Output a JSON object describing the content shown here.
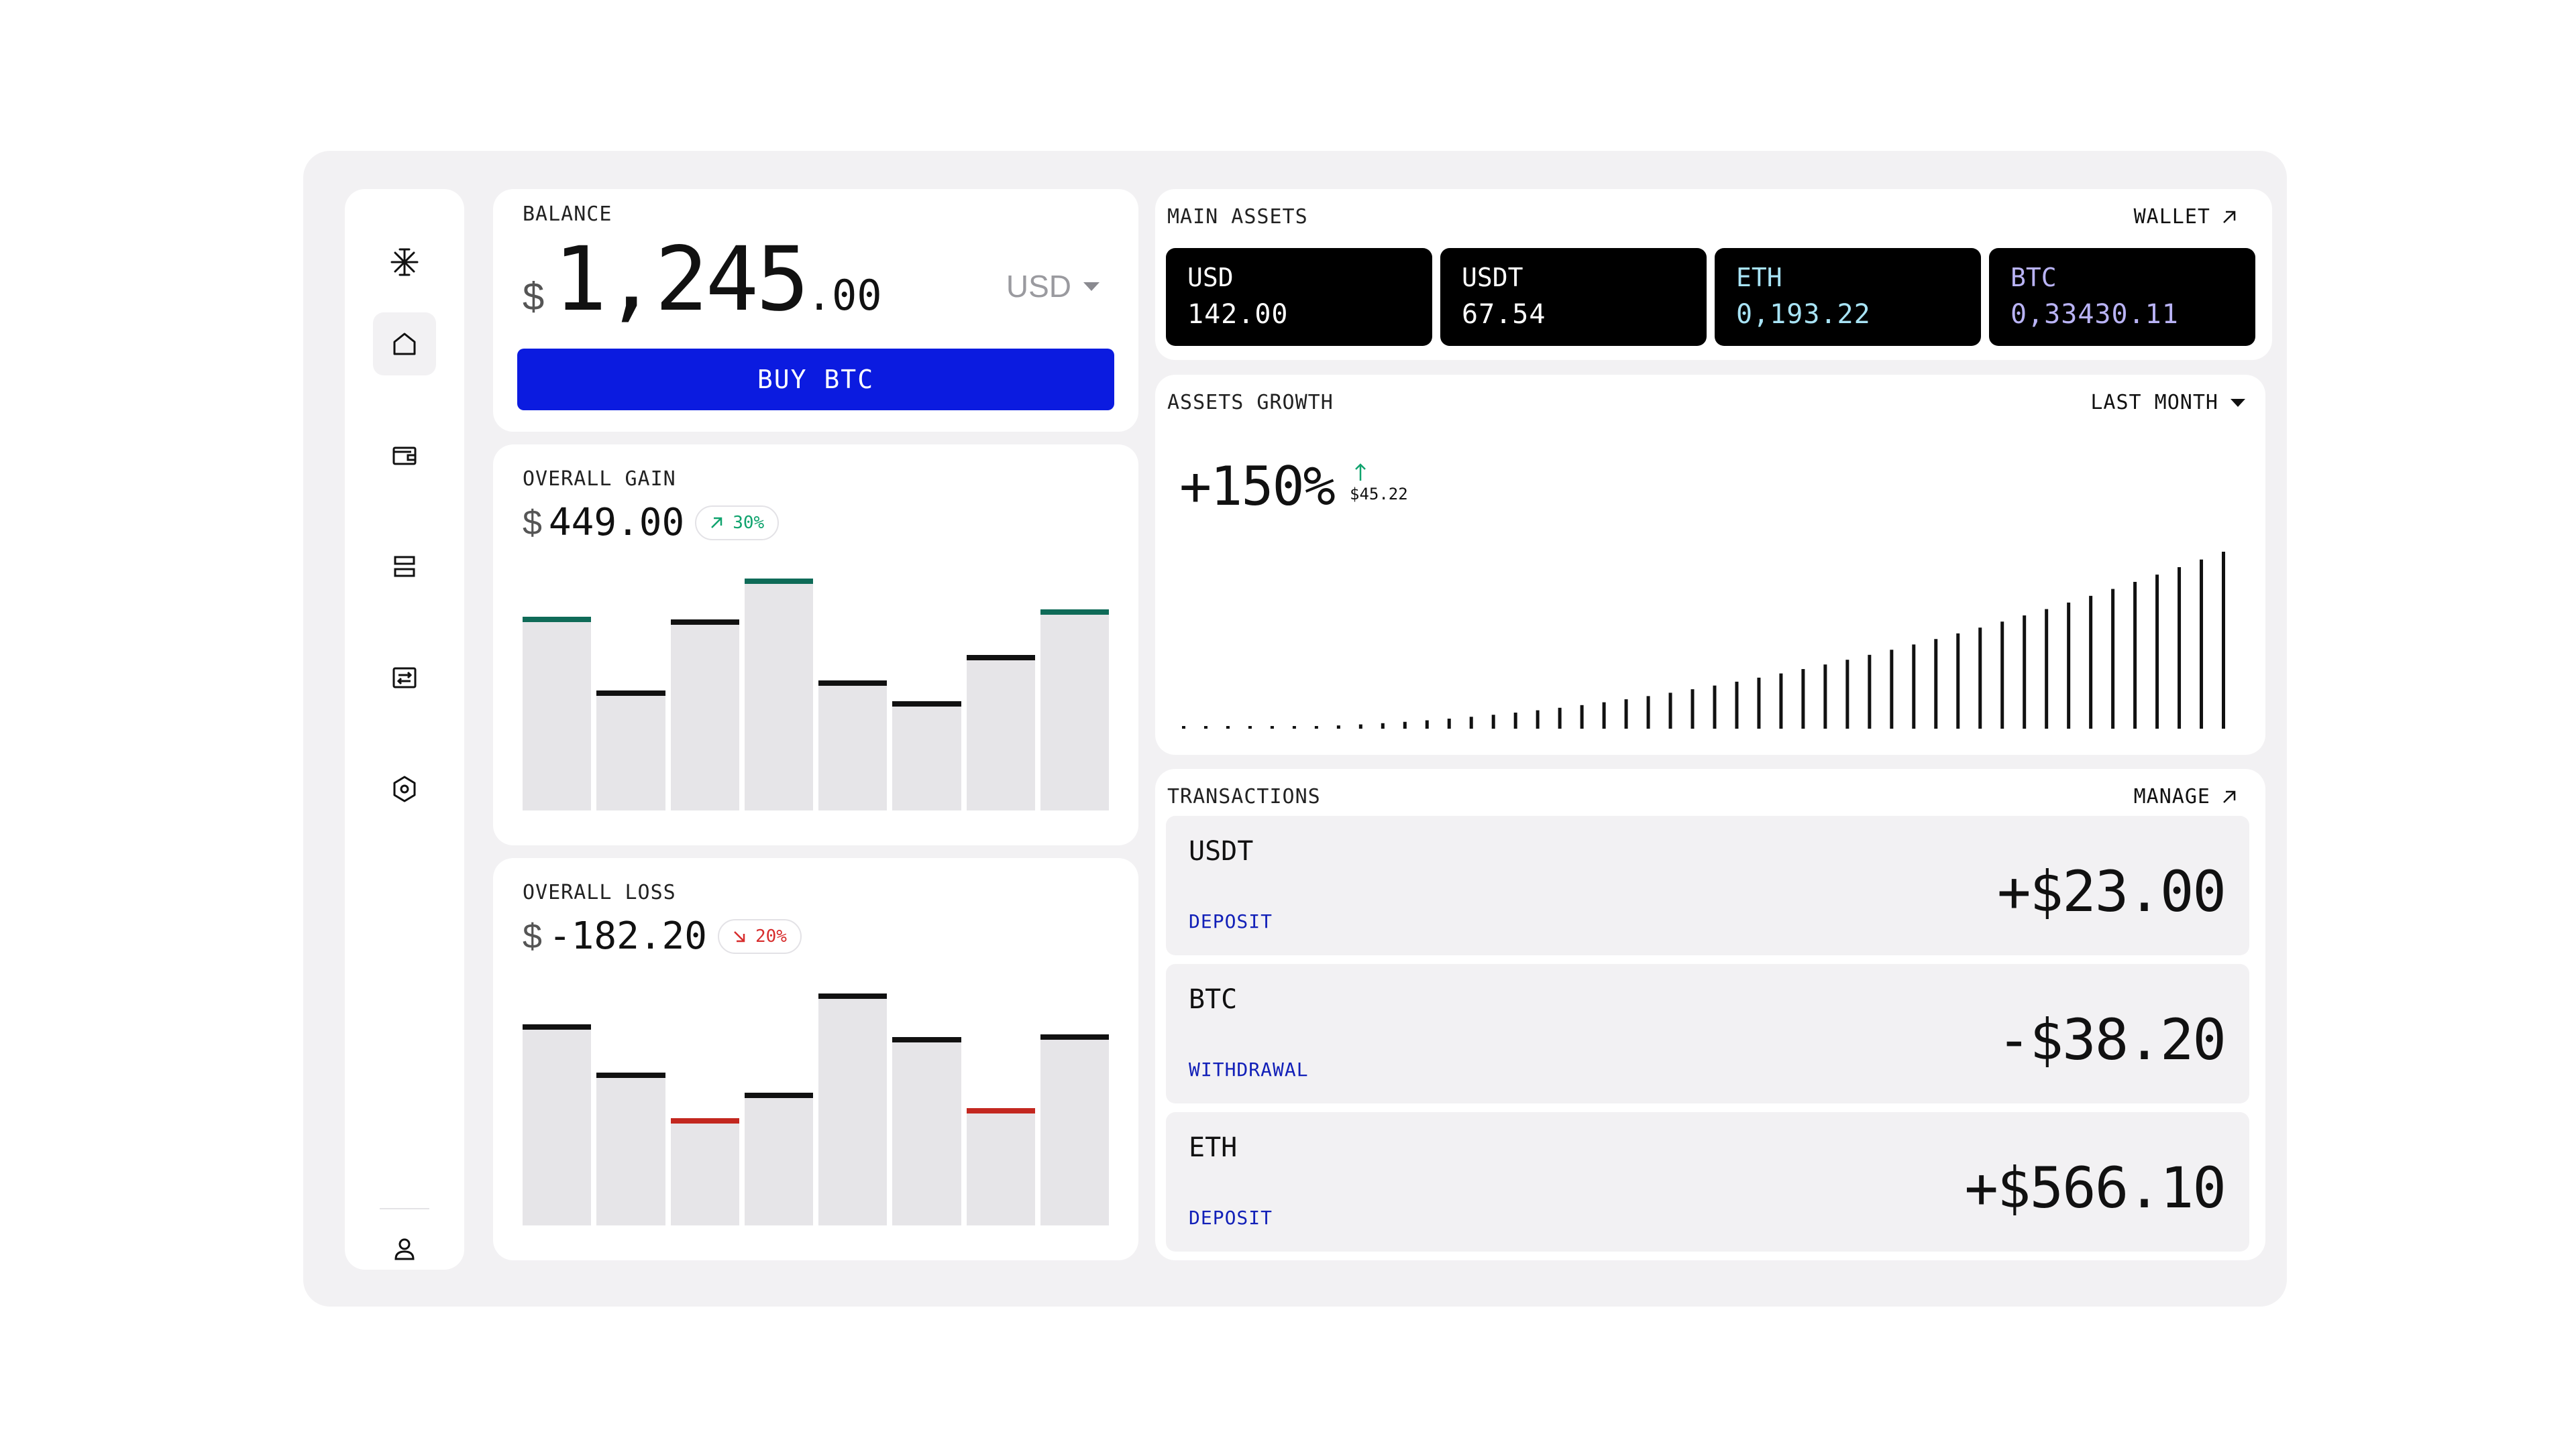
{
  "sidebar": {
    "logo_icon": "asterisk-logo-icon",
    "items": [
      {
        "name": "home",
        "icon": "home-icon",
        "active": true
      },
      {
        "name": "wallet",
        "icon": "wallet-icon",
        "active": false
      },
      {
        "name": "list",
        "icon": "list-icon",
        "active": false
      },
      {
        "name": "exchange",
        "icon": "exchange-icon",
        "active": false
      },
      {
        "name": "settings",
        "icon": "hexagon-settings-icon",
        "active": false
      }
    ],
    "profile_icon": "user-icon"
  },
  "balance": {
    "label": "BALANCE",
    "currency_sign": "$",
    "amount_int": "1,245",
    "amount_dec": ".00",
    "currency": "USD",
    "buy_label": "BUY BTC",
    "accent": "#0b1be0"
  },
  "gain": {
    "label": "OVERALL GAIN",
    "sign": "$",
    "value": "449.00",
    "badge": "30%",
    "badge_color": "#10a36e",
    "chart_data": {
      "type": "bar",
      "values": [
        0.76,
        0.47,
        0.75,
        0.91,
        0.51,
        0.43,
        0.61,
        0.79
      ],
      "cap_colors": [
        "#0f6b58",
        "#111111",
        "#111111",
        "#0f6b58",
        "#111111",
        "#111111",
        "#111111",
        "#0f6b58"
      ]
    }
  },
  "loss": {
    "label": "OVERALL LOSS",
    "sign": "$",
    "value": "-182.20",
    "badge": "20%",
    "badge_color": "#d72d2d",
    "chart_data": {
      "type": "bar",
      "values": [
        0.79,
        0.6,
        0.42,
        0.52,
        0.91,
        0.74,
        0.46,
        0.75
      ],
      "cap_colors": [
        "#111111",
        "#111111",
        "#c3271f",
        "#111111",
        "#111111",
        "#111111",
        "#c3271f",
        "#111111"
      ]
    }
  },
  "main_assets": {
    "label": "MAIN ASSETS",
    "wallet_label": "WALLET",
    "tiles": [
      {
        "name": "USD",
        "value": "142.00",
        "color": "#ffffff"
      },
      {
        "name": "USDT",
        "value": "67.54",
        "color": "#ffffff"
      },
      {
        "name": "ETH",
        "value": "0,193.22",
        "color": "#a8e3f5"
      },
      {
        "name": "BTC",
        "value": "0,33430.11",
        "color": "#b9b3f5"
      }
    ]
  },
  "growth": {
    "label": "ASSETS GROWTH",
    "period": "LAST MONTH",
    "value": "+150%",
    "sub_value": "$45.22",
    "up_color": "#10a36e",
    "chart_data": {
      "type": "bar",
      "count": 48
    }
  },
  "transactions": {
    "label": "TRANSACTIONS",
    "manage_label": "MANAGE",
    "rows": [
      {
        "asset": "USDT",
        "type": "DEPOSIT",
        "amount": "+$23.00"
      },
      {
        "asset": "BTC",
        "type": "WITHDRAWAL",
        "amount": "-$38.20"
      },
      {
        "asset": "ETH",
        "type": "DEPOSIT",
        "amount": "+$566.10"
      }
    ]
  }
}
